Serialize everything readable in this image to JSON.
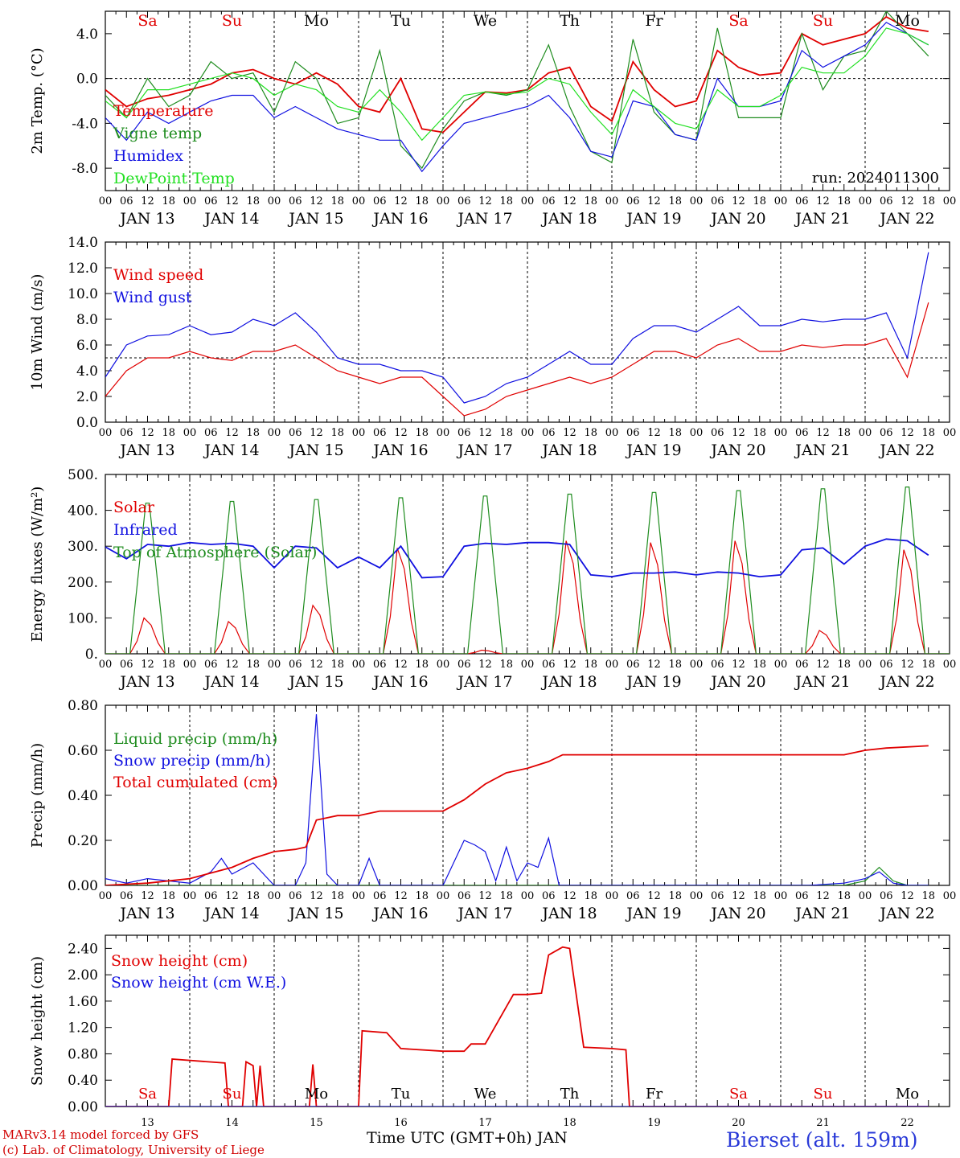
{
  "run_label": "run: 2024011300",
  "station_title": "Bierset (alt. 159m)",
  "footer": {
    "line1": "MARv3.14 model forced by GFS",
    "line2": "(c) Lab. of Climatology, University of Liege",
    "xlabel": "Time UTC (GMT+0h) JAN"
  },
  "days": [
    {
      "name": "Sa",
      "date": "JAN 13",
      "num": "13",
      "weekend": true
    },
    {
      "name": "Su",
      "date": "JAN 14",
      "num": "14",
      "weekend": true
    },
    {
      "name": "Mo",
      "date": "JAN 15",
      "num": "15",
      "weekend": false
    },
    {
      "name": "Tu",
      "date": "JAN 16",
      "num": "16",
      "weekend": false
    },
    {
      "name": "We",
      "date": "JAN 17",
      "num": "17",
      "weekend": false
    },
    {
      "name": "Th",
      "date": "JAN 18",
      "num": "18",
      "weekend": false
    },
    {
      "name": "Fr",
      "date": "JAN 19",
      "num": "19",
      "weekend": false
    },
    {
      "name": "Sa",
      "date": "JAN 20",
      "num": "20",
      "weekend": true
    },
    {
      "name": "Su",
      "date": "JAN 21",
      "num": "21",
      "weekend": true
    },
    {
      "name": "Mo",
      "date": "JAN 22",
      "num": "22",
      "weekend": false
    }
  ],
  "hour_labels": [
    "00",
    "06",
    "12",
    "18"
  ],
  "colors": {
    "red": "#e00000",
    "darkgreen": "#1e8c1e",
    "blue": "#1010e0",
    "lightgreen": "#22e022"
  },
  "chart_data": [
    {
      "type": "line",
      "ylabel": "2m Temp. (°C)",
      "ylim": [
        -10,
        6
      ],
      "yticks": [
        4,
        0,
        -4,
        -8
      ],
      "ytick_labels": [
        "4.0",
        "0.0",
        "-4.0",
        "-8.0"
      ],
      "ref_line": 0,
      "x_unit": "hours since JAN 13 00 UTC",
      "series": [
        {
          "name": "Temperature",
          "color": "#e00000",
          "x": [
            0,
            6,
            12,
            18,
            24,
            30,
            36,
            42,
            48,
            54,
            60,
            66,
            72,
            78,
            84,
            90,
            96,
            102,
            108,
            114,
            120,
            126,
            132,
            138,
            144,
            150,
            156,
            162,
            168,
            174,
            180,
            186,
            192,
            198,
            204,
            210,
            216,
            222,
            228,
            234
          ],
          "values": [
            -1.0,
            -2.5,
            -1.8,
            -1.5,
            -1.0,
            -0.5,
            0.5,
            0.8,
            0.0,
            -0.5,
            0.5,
            -0.5,
            -2.5,
            -3.0,
            0.0,
            -4.5,
            -4.8,
            -3.0,
            -1.2,
            -1.3,
            -1.0,
            0.5,
            1.0,
            -2.5,
            -3.8,
            1.5,
            -1.0,
            -2.5,
            -2.0,
            2.5,
            1.0,
            0.3,
            0.5,
            4.0,
            3.0,
            3.5,
            4.0,
            5.5,
            4.5,
            4.2
          ]
        },
        {
          "name": "Vigne temp",
          "color": "#1e8c1e",
          "x": [
            0,
            6,
            12,
            18,
            24,
            30,
            36,
            42,
            48,
            54,
            60,
            66,
            72,
            78,
            84,
            90,
            96,
            102,
            108,
            114,
            120,
            126,
            132,
            138,
            144,
            150,
            156,
            162,
            168,
            174,
            180,
            186,
            192,
            198,
            204,
            210,
            216,
            222,
            228,
            234
          ],
          "values": [
            -1.5,
            -3.5,
            0.0,
            -2.5,
            -1.5,
            1.5,
            0.0,
            0.5,
            -3.0,
            1.5,
            0.0,
            -4.0,
            -3.5,
            2.5,
            -6.0,
            -8.0,
            -4.5,
            -2.0,
            -1.2,
            -1.5,
            -1.0,
            3.0,
            -2.5,
            -6.5,
            -7.5,
            3.5,
            -3.0,
            -5.0,
            -5.5,
            4.5,
            -3.5,
            -3.5,
            -3.5,
            4.0,
            -1.0,
            2.0,
            2.5,
            6.0,
            4.0,
            2.0
          ]
        },
        {
          "name": "Humidex",
          "color": "#1010e0",
          "x": [
            0,
            6,
            12,
            18,
            24,
            30,
            36,
            42,
            48,
            54,
            60,
            66,
            72,
            78,
            84,
            90,
            96,
            102,
            108,
            114,
            120,
            126,
            132,
            138,
            144,
            150,
            156,
            162,
            168,
            174,
            180,
            186,
            192,
            198,
            204,
            210,
            216,
            222,
            228,
            234
          ],
          "values": [
            -3.5,
            -5.5,
            -3.0,
            -4.0,
            -3.0,
            -2.0,
            -1.5,
            -1.5,
            -3.5,
            -2.5,
            -3.5,
            -4.5,
            -5.0,
            -5.5,
            -5.5,
            -8.3,
            -6.0,
            -4.0,
            -3.5,
            -3.0,
            -2.5,
            -1.5,
            -3.5,
            -6.5,
            -7.0,
            -2.0,
            -2.5,
            -5.0,
            -5.5,
            0.0,
            -2.5,
            -2.5,
            -2.0,
            2.5,
            1.0,
            2.0,
            3.0,
            5.0,
            4.0,
            3.0
          ]
        },
        {
          "name": "DewPoint Temp",
          "color": "#22e022",
          "x": [
            0,
            6,
            12,
            18,
            24,
            30,
            36,
            42,
            48,
            54,
            60,
            66,
            72,
            78,
            84,
            90,
            96,
            102,
            108,
            114,
            120,
            126,
            132,
            138,
            144,
            150,
            156,
            162,
            168,
            174,
            180,
            186,
            192,
            198,
            204,
            210,
            216,
            222,
            228,
            234
          ],
          "values": [
            -2.0,
            -3.5,
            -1.0,
            -1.0,
            -0.5,
            0.0,
            0.5,
            0.0,
            -1.5,
            -0.5,
            -1.0,
            -2.5,
            -3.0,
            -1.0,
            -3.0,
            -5.5,
            -3.5,
            -1.5,
            -1.2,
            -1.4,
            -1.2,
            0.0,
            -0.5,
            -3.0,
            -5.0,
            -1.0,
            -2.5,
            -4.0,
            -4.5,
            -1.0,
            -2.5,
            -2.5,
            -1.5,
            1.0,
            0.5,
            0.5,
            2.0,
            4.5,
            4.0,
            3.0
          ]
        }
      ]
    },
    {
      "type": "line",
      "ylabel": "10m Wind (m/s)",
      "ylim": [
        0,
        14
      ],
      "yticks": [
        0,
        2,
        4,
        6,
        8,
        10,
        12,
        14
      ],
      "ytick_labels": [
        "0.0",
        "2.0",
        "4.0",
        "6.0",
        "8.0",
        "10.0",
        "12.0",
        "14.0"
      ],
      "ref_line": 5,
      "x_unit": "hours since JAN 13 00 UTC",
      "series": [
        {
          "name": "Wind speed",
          "color": "#e00000",
          "x": [
            0,
            6,
            12,
            18,
            24,
            30,
            36,
            42,
            48,
            54,
            60,
            66,
            72,
            78,
            84,
            90,
            96,
            102,
            108,
            114,
            120,
            126,
            132,
            138,
            144,
            150,
            156,
            162,
            168,
            174,
            180,
            186,
            192,
            198,
            204,
            210,
            216,
            222,
            228,
            234
          ],
          "values": [
            2.0,
            4.0,
            5.0,
            5.0,
            5.5,
            5.0,
            4.8,
            5.5,
            5.5,
            6.0,
            5.0,
            4.0,
            3.5,
            3.0,
            3.5,
            3.5,
            2.0,
            0.5,
            1.0,
            2.0,
            2.5,
            3.0,
            3.5,
            3.0,
            3.5,
            4.5,
            5.5,
            5.5,
            5.0,
            6.0,
            6.5,
            5.5,
            5.5,
            6.0,
            5.8,
            6.0,
            6.0,
            6.5,
            3.5,
            9.3
          ]
        },
        {
          "name": "Wind gust",
          "color": "#1010e0",
          "x": [
            0,
            6,
            12,
            18,
            24,
            30,
            36,
            42,
            48,
            54,
            60,
            66,
            72,
            78,
            84,
            90,
            96,
            102,
            108,
            114,
            120,
            126,
            132,
            138,
            144,
            150,
            156,
            162,
            168,
            174,
            180,
            186,
            192,
            198,
            204,
            210,
            216,
            222,
            228,
            234
          ],
          "values": [
            3.5,
            6.0,
            6.7,
            6.8,
            7.5,
            6.8,
            7.0,
            8.0,
            7.5,
            8.5,
            7.0,
            5.0,
            4.5,
            4.5,
            4.0,
            4.0,
            3.5,
            1.5,
            2.0,
            3.0,
            3.5,
            4.5,
            5.5,
            4.5,
            4.5,
            6.5,
            7.5,
            7.5,
            7.0,
            8.0,
            9.0,
            7.5,
            7.5,
            8.0,
            7.8,
            8.0,
            8.0,
            8.5,
            5.0,
            13.2
          ]
        }
      ]
    },
    {
      "type": "line",
      "ylabel": "Energy fluxes (W/m²)",
      "ylim": [
        0,
        500
      ],
      "yticks": [
        0,
        100,
        200,
        300,
        400,
        500
      ],
      "ytick_labels": [
        "0.",
        "100.",
        "200.",
        "300.",
        "400.",
        "500."
      ],
      "x_unit": "hours since JAN 13 00 UTC",
      "series": [
        {
          "name": "Solar",
          "color": "#e00000",
          "peaks": [
            100,
            90,
            135,
            295,
            10,
            315,
            310,
            315,
            65,
            290
          ]
        },
        {
          "name": "Infrared",
          "color": "#1010e0",
          "x": [
            0,
            6,
            12,
            18,
            24,
            30,
            36,
            42,
            48,
            54,
            60,
            66,
            72,
            78,
            84,
            90,
            96,
            102,
            108,
            114,
            120,
            126,
            132,
            138,
            144,
            150,
            156,
            162,
            168,
            174,
            180,
            186,
            192,
            198,
            204,
            210,
            216,
            222,
            228,
            234
          ],
          "values": [
            298,
            265,
            305,
            300,
            310,
            305,
            308,
            300,
            240,
            300,
            295,
            240,
            270,
            240,
            300,
            212,
            215,
            300,
            308,
            305,
            310,
            310,
            305,
            220,
            215,
            225,
            225,
            228,
            220,
            228,
            225,
            215,
            220,
            290,
            295,
            250,
            300,
            320,
            315,
            275
          ]
        },
        {
          "name": "Top of Atmosphere (Solar)",
          "color": "#1e8c1e",
          "peaks": [
            420,
            425,
            430,
            435,
            440,
            445,
            450,
            455,
            460,
            465
          ]
        }
      ]
    },
    {
      "type": "line",
      "ylabel": "Precip (mm/h)",
      "ylim": [
        0,
        0.8
      ],
      "yticks": [
        0,
        0.2,
        0.4,
        0.6,
        0.8
      ],
      "ytick_labels": [
        "0.00",
        "0.20",
        "0.40",
        "0.60",
        "0.80"
      ],
      "x_unit": "hours since JAN 13 00 UTC",
      "series": [
        {
          "name": "Liquid precip (mm/h)",
          "color": "#1e8c1e",
          "x": [
            0,
            210,
            216,
            220,
            224,
            228,
            234
          ],
          "values": [
            0,
            0,
            0.02,
            0.08,
            0.02,
            0,
            0
          ]
        },
        {
          "name": "Snow precip (mm/h)",
          "color": "#1010e0",
          "x": [
            0,
            6,
            12,
            24,
            30,
            33,
            36,
            42,
            48,
            54,
            57,
            60,
            63,
            66,
            72,
            75,
            78,
            84,
            96,
            102,
            105,
            108,
            111,
            114,
            117,
            120,
            123,
            126,
            129,
            132,
            138,
            200,
            210,
            216,
            220,
            224,
            228,
            234
          ],
          "values": [
            0.03,
            0.01,
            0.03,
            0.01,
            0.06,
            0.12,
            0.05,
            0.1,
            0.0,
            0.0,
            0.1,
            0.76,
            0.05,
            0.0,
            0.0,
            0.12,
            0.0,
            0.0,
            0.0,
            0.2,
            0.18,
            0.15,
            0.02,
            0.17,
            0.02,
            0.1,
            0.08,
            0.21,
            0.0,
            0.0,
            0.0,
            0.0,
            0.01,
            0.03,
            0.06,
            0.01,
            0.0,
            0.0
          ]
        },
        {
          "name": "Total cumulated (cm)",
          "color": "#e00000",
          "x": [
            0,
            12,
            24,
            36,
            42,
            48,
            54,
            57,
            60,
            66,
            72,
            78,
            84,
            96,
            102,
            108,
            114,
            120,
            126,
            130,
            138,
            150,
            174,
            198,
            210,
            216,
            222,
            234
          ],
          "values": [
            0.0,
            0.01,
            0.03,
            0.08,
            0.12,
            0.15,
            0.16,
            0.17,
            0.29,
            0.31,
            0.31,
            0.33,
            0.33,
            0.33,
            0.38,
            0.45,
            0.5,
            0.52,
            0.55,
            0.58,
            0.58,
            0.58,
            0.58,
            0.58,
            0.58,
            0.6,
            0.61,
            0.62
          ]
        }
      ]
    },
    {
      "type": "line",
      "ylabel": "Snow height (cm)",
      "ylim": [
        0,
        2.6
      ],
      "yticks": [
        0,
        0.4,
        0.8,
        1.2,
        1.6,
        2.0,
        2.4
      ],
      "ytick_labels": [
        "0.00",
        "0.40",
        "0.80",
        "1.20",
        "1.60",
        "2.00",
        "2.40"
      ],
      "x_unit": "hours since JAN 13 00 UTC",
      "series": [
        {
          "name": "Snow height (cm)",
          "color": "#e00000",
          "x": [
            0,
            18,
            19,
            34,
            35,
            39,
            40,
            42,
            43,
            44,
            45,
            58,
            59,
            60,
            72,
            73,
            80,
            84,
            96,
            102,
            104,
            108,
            116,
            118,
            120,
            124,
            126,
            130,
            132,
            136,
            144,
            148,
            149,
            234
          ],
          "values": [
            0,
            0,
            0.72,
            0.66,
            0,
            0,
            0.68,
            0.62,
            0,
            0.62,
            0,
            0,
            0.64,
            0,
            0,
            1.15,
            1.12,
            0.88,
            0.84,
            0.84,
            0.95,
            0.95,
            1.7,
            1.7,
            1.7,
            1.72,
            2.3,
            2.42,
            2.4,
            0.9,
            0.88,
            0.86,
            0,
            0
          ]
        },
        {
          "name": "Snow height (cm W.E.)",
          "color": "#1010e0",
          "x": [
            0,
            234
          ],
          "values": [
            0,
            0
          ]
        }
      ]
    }
  ]
}
